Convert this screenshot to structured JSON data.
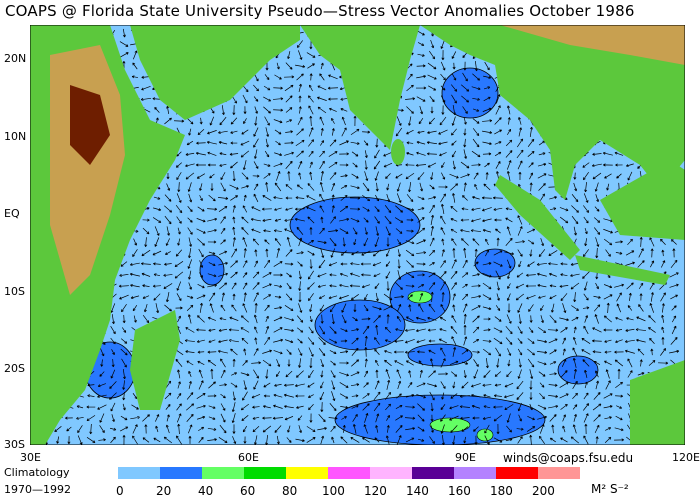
{
  "title": "COAPS @ Florida State University Pseudo—Stress Vector Anomalies  October 1986",
  "lat_labels": [
    "20N",
    "10N",
    "EQ",
    "10S",
    "20S",
    "30S"
  ],
  "lon_labels": [
    "30E",
    "60E",
    "90E",
    "120E"
  ],
  "credit": "winds@coaps.fsu.edu",
  "climatology": {
    "line1": "Climatology",
    "line2": "1970—1992"
  },
  "legend": {
    "colors": [
      "#80c8ff",
      "#2878ff",
      "#64ff64",
      "#00dc00",
      "#ffff00",
      "#ff55ff",
      "#ffb4ff",
      "#5a0096",
      "#b482ff",
      "#ff0000",
      "#ff9696"
    ],
    "ticks": [
      "0",
      "20",
      "40",
      "60",
      "80",
      "100",
      "120",
      "140",
      "160",
      "180",
      "200"
    ],
    "units": "M² S⁻²"
  },
  "colors": {
    "ocean": "#80c8ff",
    "anomaly_20_40": "#2878ff",
    "anomaly_40_60": "#64ff64",
    "land_low": "#5cc83c",
    "land_mid": "#c8a050",
    "land_high": "#6e1e00",
    "coast_shadow": "#c8c8c8"
  }
}
